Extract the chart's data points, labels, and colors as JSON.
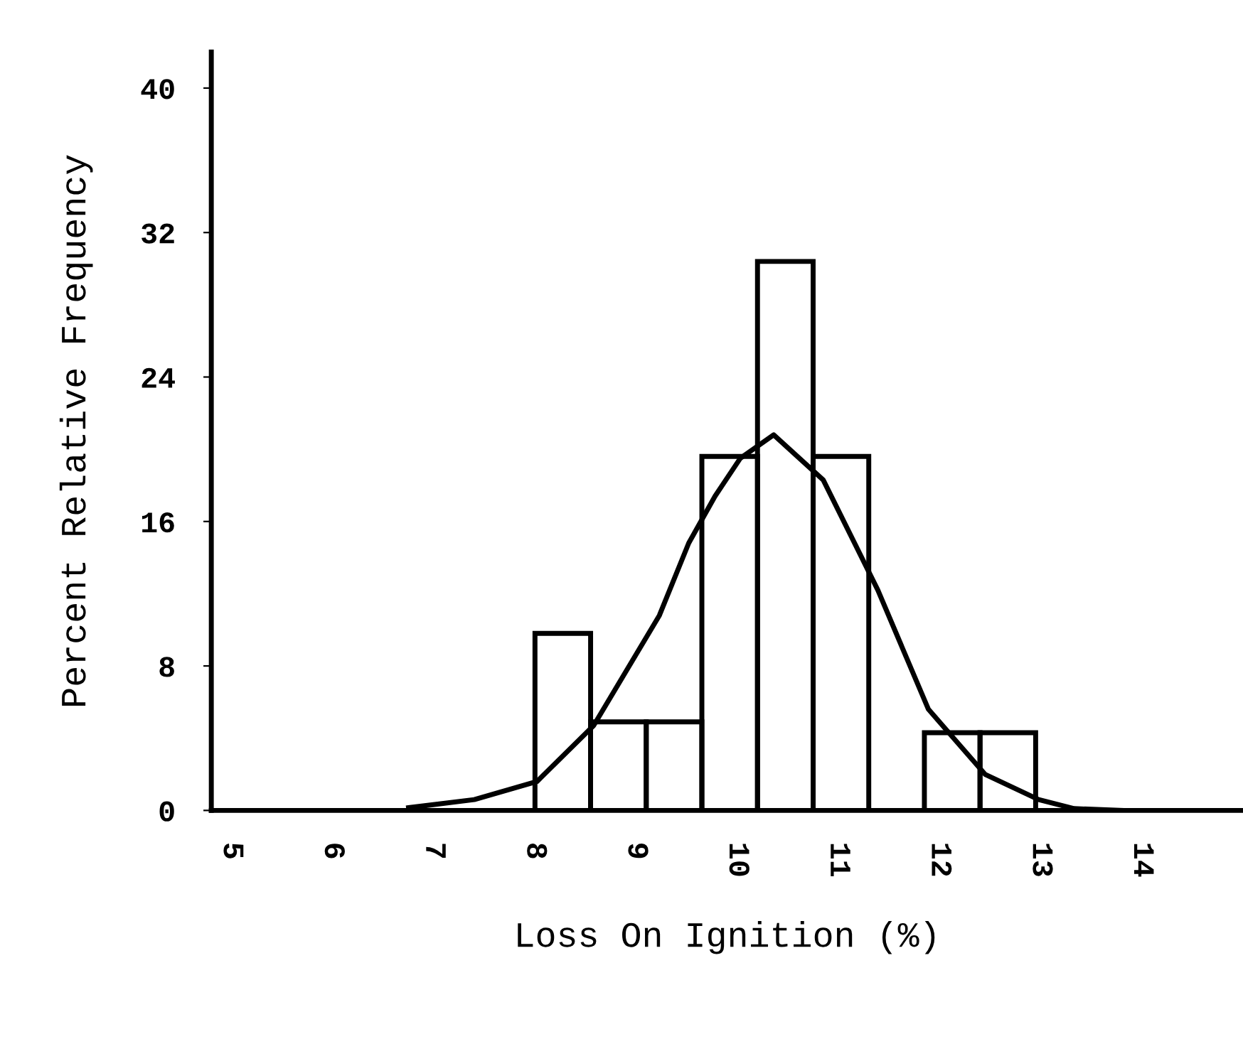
{
  "chart_data": {
    "type": "histogram",
    "xlabel": "Loss On Ignition (%)",
    "ylabel": "Percent Relative Frequency",
    "bins": [
      8.0,
      8.55,
      9.1,
      9.65,
      10.2,
      10.75,
      11.3,
      11.85,
      12.4,
      12.95
    ],
    "values": [
      9.8,
      4.9,
      4.9,
      19.6,
      30.4,
      19.6,
      0,
      4.3,
      4.3
    ],
    "color": "#000000",
    "series": [
      {
        "type": "line",
        "color": "#000000",
        "x": [
          6.75,
          7.4,
          8.02,
          8.58,
          9.23,
          9.52,
          9.78,
          10.03,
          10.36,
          10.85,
          11.39,
          11.89,
          12.45,
          12.98,
          13.33,
          13.8
        ],
        "values": [
          0.15,
          0.6,
          1.6,
          4.7,
          10.8,
          14.8,
          17.4,
          19.5,
          20.8,
          18.3,
          12.2,
          5.6,
          2.0,
          0.6,
          0.1,
          0
        ]
      }
    ],
    "xlim": [
      4.8,
      15
    ],
    "ylim": [
      0,
      42
    ],
    "xticks": [
      5,
      6,
      7,
      8,
      9,
      10,
      11,
      12,
      13,
      14
    ],
    "yticks": [
      0,
      8,
      16,
      24,
      32,
      40
    ],
    "grid": false,
    "legend": false
  }
}
